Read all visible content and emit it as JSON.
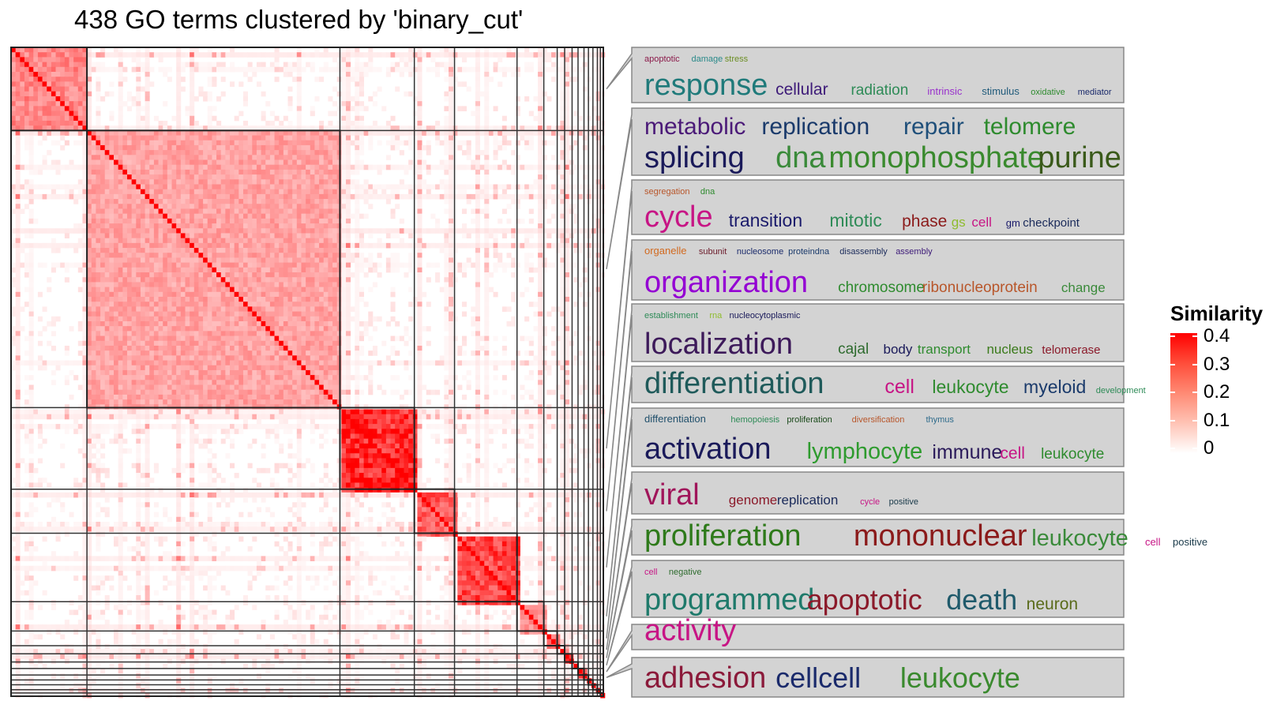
{
  "chart_data": {
    "type": "heatmap",
    "title": "438 GO terms clustered by 'binary_cut'",
    "n_terms": 438,
    "clusters": [
      {
        "size": 51,
        "within_similarity": 0.22,
        "words": [
          {
            "t": "apoptotic",
            "s": 0.2,
            "c": "#8b1a4a",
            "row": 1
          },
          {
            "t": "damage",
            "s": 0.2,
            "c": "#2a8a8a",
            "row": 1
          },
          {
            "t": "stress",
            "s": 0.2,
            "c": "#6b8e23",
            "row": 1
          },
          {
            "t": "response",
            "s": 1.0,
            "c": "#1f7a7a",
            "row": 2
          },
          {
            "t": "cellular",
            "s": 0.55,
            "c": "#3d1a78",
            "row": 2
          },
          {
            "t": "radiation",
            "s": 0.5,
            "c": "#2e8b57",
            "row": 2
          },
          {
            "t": "intrinsic",
            "s": 0.35,
            "c": "#9932cc",
            "row": 2
          },
          {
            "t": "stimulus",
            "s": 0.35,
            "c": "#1f5a7a",
            "row": 2
          },
          {
            "t": "oxidative",
            "s": 0.25,
            "c": "#2e8b2e",
            "row": 2
          },
          {
            "t": "mediator",
            "s": 0.25,
            "c": "#1a2a6b",
            "row": 2
          }
        ]
      },
      {
        "size": 170,
        "within_similarity": 0.17,
        "words": [
          {
            "t": "metabolic",
            "s": 0.8,
            "c": "#4b1a78",
            "row": 1
          },
          {
            "t": "replication",
            "s": 0.8,
            "c": "#1a3a6b",
            "row": 1
          },
          {
            "t": "repair",
            "s": 0.8,
            "c": "#1f4f7a",
            "row": 1
          },
          {
            "t": "telomere",
            "s": 0.8,
            "c": "#2e8b2e",
            "row": 1
          },
          {
            "t": "splicing",
            "s": 1.0,
            "c": "#1a1a5a",
            "row": 2
          },
          {
            "t": "dna",
            "s": 1.0,
            "c": "#3a8a3a",
            "row": 2
          },
          {
            "t": "monophosphate",
            "s": 1.0,
            "c": "#3a8a2e",
            "row": 2
          },
          {
            "t": "purine",
            "s": 1.0,
            "c": "#3a5a1a",
            "row": 2
          }
        ]
      },
      {
        "size": 50,
        "within_similarity": 0.4,
        "words": [
          {
            "t": "segregation",
            "s": 0.2,
            "c": "#b8562a",
            "row": 1
          },
          {
            "t": "dna",
            "s": 0.2,
            "c": "#2e8b2e",
            "row": 1
          },
          {
            "t": "cycle",
            "s": 1.0,
            "c": "#c71585",
            "row": 2
          },
          {
            "t": "transition",
            "s": 0.6,
            "c": "#1a1a6b",
            "row": 2
          },
          {
            "t": "mitotic",
            "s": 0.6,
            "c": "#2e8b57",
            "row": 2
          },
          {
            "t": "phase",
            "s": 0.55,
            "c": "#8b1a1a",
            "row": 2
          },
          {
            "t": "gs",
            "s": 0.45,
            "c": "#8fbc2e",
            "row": 2
          },
          {
            "t": "cell",
            "s": 0.45,
            "c": "#c71585",
            "row": 2
          },
          {
            "t": "gm",
            "s": 0.35,
            "c": "#1a1a6b",
            "row": 2
          },
          {
            "t": "checkpoint",
            "s": 0.4,
            "c": "#1a2a5a",
            "row": 2
          }
        ]
      },
      {
        "size": 27,
        "within_similarity": 0.3,
        "words": [
          {
            "t": "organelle",
            "s": 0.35,
            "c": "#d2691e",
            "row": 1
          },
          {
            "t": "subunit",
            "s": 0.3,
            "c": "#6b1a2a",
            "row": 1
          },
          {
            "t": "nucleosome",
            "s": 0.3,
            "c": "#1a2a6b",
            "row": 1
          },
          {
            "t": "proteindna",
            "s": 0.3,
            "c": "#1a3a6b",
            "row": 1
          },
          {
            "t": "disassembly",
            "s": 0.25,
            "c": "#1a2a5a",
            "row": 1
          },
          {
            "t": "assembly",
            "s": 0.25,
            "c": "#3d1a78",
            "row": 1
          },
          {
            "t": "organization",
            "s": 1.0,
            "c": "#9400d3",
            "row": 2
          },
          {
            "t": "chromosome",
            "s": 0.5,
            "c": "#2e8b2e",
            "row": 2
          },
          {
            "t": "ribonucleoprotein",
            "s": 0.5,
            "c": "#b8562a",
            "row": 2
          },
          {
            "t": "change",
            "s": 0.45,
            "c": "#3a8a3a",
            "row": 2
          }
        ]
      },
      {
        "size": 42,
        "within_similarity": 0.35,
        "words": [
          {
            "t": "establishment",
            "s": 0.3,
            "c": "#2e8b57",
            "row": 1
          },
          {
            "t": "rna",
            "s": 0.3,
            "c": "#8fbc2e",
            "row": 1
          },
          {
            "t": "nucleocytoplasmic",
            "s": 0.25,
            "c": "#1a1a5a",
            "row": 1
          },
          {
            "t": "localization",
            "s": 1.0,
            "c": "#3d1a5a",
            "row": 2
          },
          {
            "t": "cajal",
            "s": 0.5,
            "c": "#2e6b2e",
            "row": 2
          },
          {
            "t": "body",
            "s": 0.45,
            "c": "#1a1a5a",
            "row": 2
          },
          {
            "t": "transport",
            "s": 0.45,
            "c": "#2e8b2e",
            "row": 2
          },
          {
            "t": "nucleus",
            "s": 0.45,
            "c": "#3a7a1a",
            "row": 2
          },
          {
            "t": "telomerase",
            "s": 0.4,
            "c": "#8b1a2a",
            "row": 2
          }
        ]
      },
      {
        "size": 18,
        "within_similarity": 0.2,
        "words": [
          {
            "t": "differentiation",
            "s": 1.0,
            "c": "#1f5a5a",
            "row": 1
          },
          {
            "t": "cell",
            "s": 0.65,
            "c": "#c71585",
            "row": 1
          },
          {
            "t": "leukocyte",
            "s": 0.6,
            "c": "#2e8b2e",
            "row": 1
          },
          {
            "t": "myeloid",
            "s": 0.6,
            "c": "#1a3a6b",
            "row": 1
          },
          {
            "t": "development",
            "s": 0.3,
            "c": "#2e8b57",
            "row": 1
          }
        ]
      },
      {
        "size": 9,
        "within_similarity": 0.25,
        "words": [
          {
            "t": "differentiation",
            "s": 0.35,
            "c": "#1f4f6b",
            "row": 1
          },
          {
            "t": "hemopoiesis",
            "s": 0.3,
            "c": "#2e8b57",
            "row": 1
          },
          {
            "t": "proliferation",
            "s": 0.25,
            "c": "#1a4a1a",
            "row": 1
          },
          {
            "t": "diversification",
            "s": 0.25,
            "c": "#b8562a",
            "row": 1
          },
          {
            "t": "thymus",
            "s": 0.25,
            "c": "#2e6b8b",
            "row": 1
          },
          {
            "t": "activation",
            "s": 1.0,
            "c": "#1a1a5a",
            "row": 2
          },
          {
            "t": "lymphocyte",
            "s": 0.75,
            "c": "#2e9b2e",
            "row": 2
          },
          {
            "t": "immune",
            "s": 0.65,
            "c": "#2a1a5a",
            "row": 2
          },
          {
            "t": "cell",
            "s": 0.55,
            "c": "#c71585",
            "row": 2
          },
          {
            "t": "leukocyte",
            "s": 0.5,
            "c": "#2e8b2e",
            "row": 2
          }
        ]
      },
      {
        "size": 5,
        "within_similarity": 0.25,
        "words": [
          {
            "t": "viral",
            "s": 1.0,
            "c": "#a0155a",
            "row": 1
          },
          {
            "t": "genome",
            "s": 0.45,
            "c": "#8b1a2a",
            "row": 1
          },
          {
            "t": "replication",
            "s": 0.45,
            "c": "#1a2a5a",
            "row": 1
          },
          {
            "t": "cycle",
            "s": 0.3,
            "c": "#c71585",
            "row": 1
          },
          {
            "t": "positive",
            "s": 0.25,
            "c": "#1a3a4a",
            "row": 1
          }
        ]
      },
      {
        "size": 5,
        "within_similarity": 0.3,
        "words": [
          {
            "t": "proliferation",
            "s": 1.0,
            "c": "#2e7a1a",
            "row": 1
          },
          {
            "t": "mononuclear",
            "s": 1.0,
            "c": "#8b1a1a",
            "row": 1
          },
          {
            "t": "leukocyte",
            "s": 0.75,
            "c": "#3a8a3a",
            "row": 1
          },
          {
            "t": "cell",
            "s": 0.35,
            "c": "#c71585",
            "row": 1
          },
          {
            "t": "positive",
            "s": 0.35,
            "c": "#1a3a4a",
            "row": 1
          }
        ]
      },
      {
        "size": 4,
        "within_similarity": 0.3,
        "words": [
          {
            "t": "cell",
            "s": 0.3,
            "c": "#c71585",
            "row": 1
          },
          {
            "t": "negative",
            "s": 0.3,
            "c": "#2e6b2e",
            "row": 1
          },
          {
            "t": "programmed",
            "s": 1.0,
            "c": "#1f7a6b",
            "row": 2
          },
          {
            "t": "apoptotic",
            "s": 0.95,
            "c": "#8b1a2a",
            "row": 2
          },
          {
            "t": "death",
            "s": 0.95,
            "c": "#1f5a6b",
            "row": 2
          },
          {
            "t": "neuron",
            "s": 0.55,
            "c": "#5a6b1a",
            "row": 2
          }
        ]
      },
      {
        "size": 4,
        "within_similarity": 0.3,
        "words": [
          {
            "t": "activity",
            "s": 1.0,
            "c": "#c71585",
            "row": 1
          }
        ]
      },
      {
        "size": 3,
        "within_similarity": 0.35,
        "words": [
          {
            "t": "adhesion",
            "s": 1.0,
            "c": "#8b1a3a",
            "row": 1
          },
          {
            "t": "cellcell",
            "s": 0.95,
            "c": "#1a2a6b",
            "row": 1
          },
          {
            "t": "leukocyte",
            "s": 0.95,
            "c": "#3a8a2e",
            "row": 1
          }
        ]
      },
      {
        "size": 3,
        "within_similarity": 0.35,
        "words": []
      },
      {
        "size": 3,
        "within_similarity": 0.35,
        "words": []
      },
      {
        "size": 2,
        "within_similarity": 0.4,
        "words": []
      },
      {
        "size": 2,
        "within_similarity": 0.4,
        "words": []
      }
    ],
    "legend": {
      "title": "Similarity",
      "ticks": [
        0.4,
        0.3,
        0.2,
        0.1,
        0
      ],
      "tick_labels": [
        "0.4",
        "0.3",
        "0.2",
        "0.1",
        "0"
      ],
      "color_high": "#ff0000",
      "color_low": "#ffffff",
      "range": [
        0,
        0.4
      ]
    }
  }
}
